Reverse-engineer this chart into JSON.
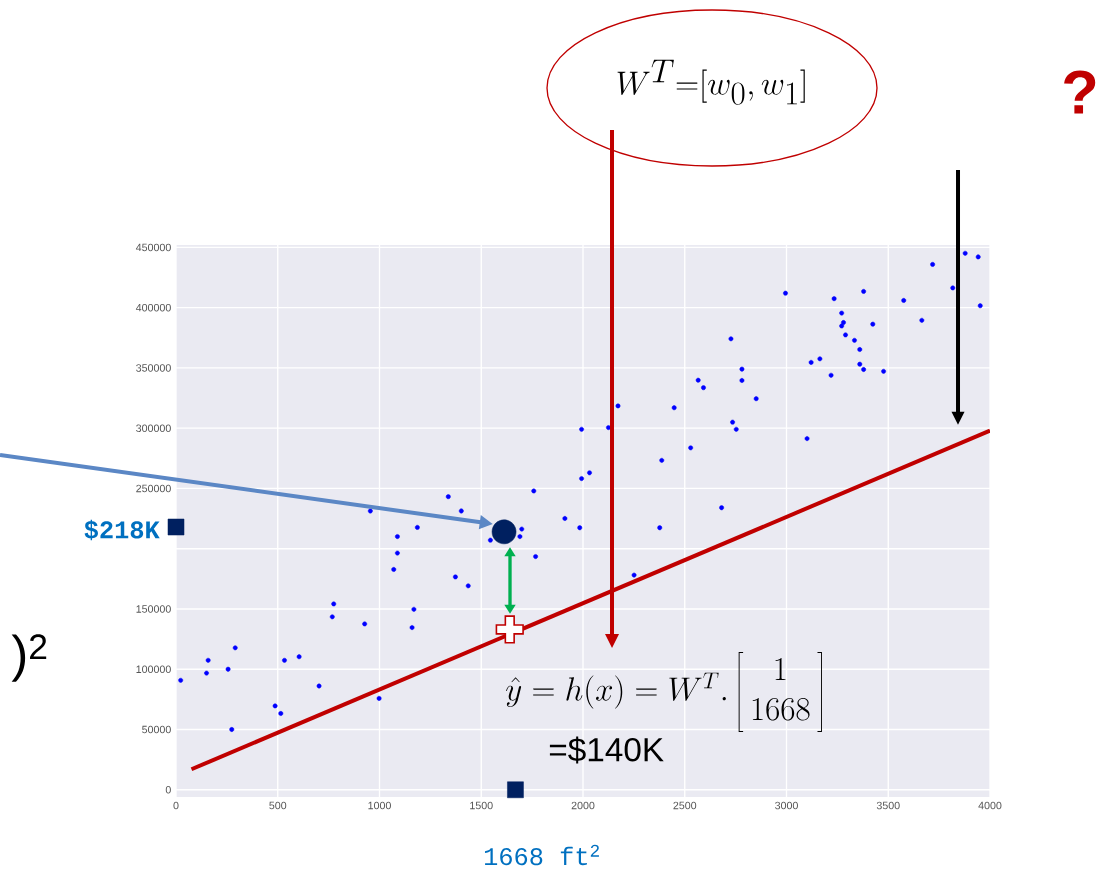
{
  "chart_data": {
    "type": "scatter",
    "grid": true,
    "xlim": [
      0,
      4000
    ],
    "ylim": [
      -6000,
      452000
    ],
    "xticks": [
      0,
      500,
      1000,
      1500,
      2000,
      2500,
      3000,
      3500,
      4000
    ],
    "yticks": [
      0,
      50000,
      100000,
      150000,
      {
        "value": 200000,
        "label": null
      },
      250000,
      300000,
      350000,
      400000,
      450000
    ],
    "series": [
      {
        "color": "#0000ff",
        "marker": "circle",
        "x": [
          23,
          150,
          158,
          256,
          291,
          274,
          487,
          515,
          533,
          605,
          703,
          768,
          775,
          927,
          998,
          955,
          1070,
          1088,
          1088,
          1186,
          1169,
          1160,
          1338,
          1402,
          1373,
          1436,
          1545,
          1699,
          1690,
          1767,
          1758,
          1911,
          1984,
          1993,
          1993,
          2032,
          2172,
          2125,
          2387,
          2448,
          2529,
          2377,
          2251,
          2681,
          2566,
          2592,
          2727,
          2781,
          2781,
          2735,
          2753,
          2851,
          2995,
          3101,
          3121,
          3164,
          3219,
          3234,
          3271,
          3280,
          3271,
          3290,
          3334,
          3360,
          3360,
          3379,
          3379,
          3424,
          3477,
          3576,
          3665,
          3718,
          3817,
          3878,
          3942,
          3952
        ],
        "values": [
          90800,
          96800,
          107400,
          100000,
          117800,
          50000,
          69600,
          63300,
          107400,
          110400,
          86100,
          143500,
          154200,
          137600,
          75800,
          231300,
          182800,
          196400,
          210100,
          217700,
          149700,
          134600,
          243200,
          231300,
          176600,
          169200,
          207100,
          216300,
          210100,
          193500,
          247900,
          225100,
          217400,
          258200,
          299100,
          263000,
          318500,
          300500,
          273300,
          317000,
          283700,
          217400,
          178100,
          234000,
          339800,
          333600,
          374200,
          349000,
          339600,
          305000,
          299100,
          324500,
          412000,
          291400,
          354600,
          357600,
          343900,
          407500,
          395500,
          387700,
          384800,
          377400,
          372900,
          365300,
          353100,
          348700,
          413500,
          386300,
          347200,
          406000,
          389500,
          435900,
          416400,
          445100,
          442100,
          401600
        ]
      },
      {
        "type": "line",
        "color": "#c00000",
        "x": [
          76,
          4000
        ],
        "values": [
          17000,
          298000
        ]
      },
      {
        "color": "#002060",
        "marker": "circle",
        "x": [
          1612
        ],
        "values": [
          214000
        ]
      },
      {
        "color": "#002060",
        "marker": "square",
        "x": [
          0,
          1668
        ],
        "values": [
          218000,
          0
        ]
      },
      {
        "color": "#c00000",
        "marker": "cross",
        "x": [
          1640
        ],
        "values": [
          133000
        ]
      }
    ],
    "annotations": [
      "W^{T}\\mathrm{=}[w_{0},w_{1}]",
      "?",
      "$218K",
      ")$^{2}$",
      "\\hat{y} = h(x) = W^{T}.\\left[\\begin{array}{c}1\\\\1668\\end{array}\\right]",
      "=$140K",
      "1668 ft$^{2}$"
    ]
  }
}
